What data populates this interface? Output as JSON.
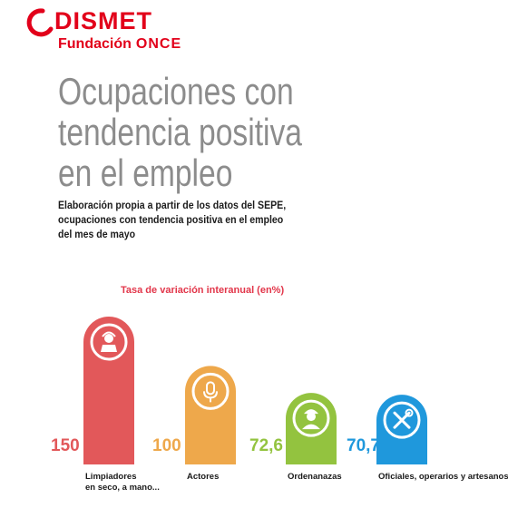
{
  "header": {
    "logo_word": "DISMET",
    "logo_sub_prefix": "Fundación",
    "logo_sub_brand": "ONCE",
    "logo_icon": "dismet-swoosh-logo-icon"
  },
  "title_lines": [
    "Ocupaciones con",
    "tendencia  positiva",
    "en el empleo"
  ],
  "subtitle_lines": [
    "Elaboración propia a partir de los datos del SEPE,",
    "ocupaciones con tendencia positiva en el empleo",
    "del mes de mayo"
  ],
  "chart_data": {
    "type": "bar",
    "title": "Tasa de variación interanual (en%)",
    "categories": [
      [
        "Limpiadores",
        "en seco, a mano..."
      ],
      [
        "Actores"
      ],
      [
        "Ordenanazas"
      ],
      [
        "Oficiales, operarios y artesanos"
      ]
    ],
    "values": [
      150,
      100,
      72.6,
      70.7
    ],
    "value_labels": [
      "150",
      "100",
      "72,6",
      "70,7"
    ],
    "colors": [
      "#e2585a",
      "#eea84b",
      "#93c33f",
      "#1f98dc"
    ],
    "icons": [
      "cleaner-person-icon",
      "microphone-icon",
      "worker-person-icon",
      "tools-wrench-screwdriver-icon"
    ],
    "ylim": [
      0,
      160
    ],
    "grid": false,
    "legend": "none"
  }
}
